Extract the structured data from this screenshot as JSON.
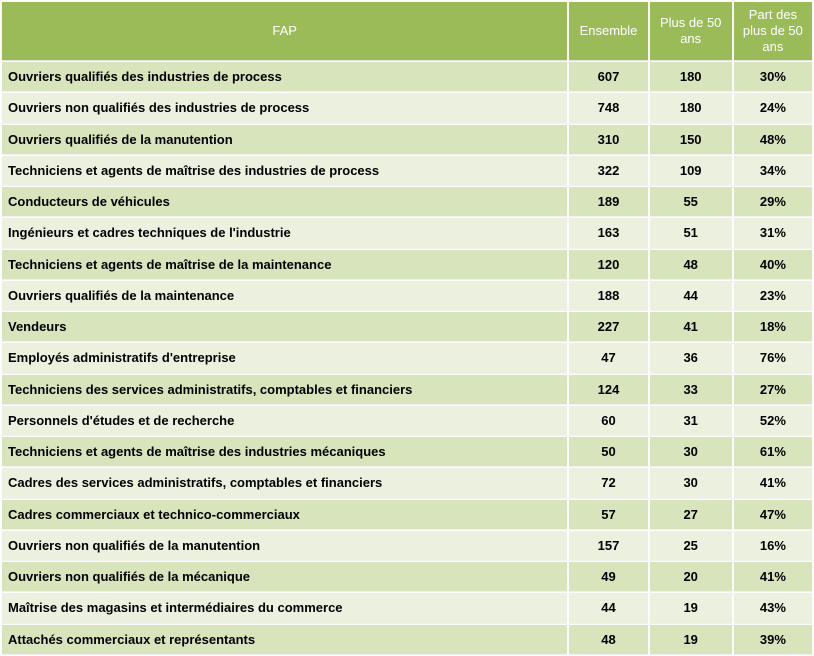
{
  "colors": {
    "header_bg": "#9bbb59",
    "header_text": "#ffffff",
    "row_odd_bg": "#d7e4bc",
    "row_even_bg": "#ebf1de",
    "grid": "#ffffff",
    "body_text": "#000000"
  },
  "chart_data": {
    "type": "table",
    "title": "",
    "columns": [
      "FAP",
      "Ensemble",
      "Plus de 50 ans",
      "Part des plus de 50 ans"
    ],
    "rows": [
      [
        "Ouvriers qualifiés des industries de process",
        "607",
        "180",
        "30%"
      ],
      [
        "Ouvriers non qualifiés des industries de process",
        "748",
        "180",
        "24%"
      ],
      [
        "Ouvriers qualifiés de la manutention",
        "310",
        "150",
        "48%"
      ],
      [
        "Techniciens et agents de maîtrise des industries de process",
        "322",
        "109",
        "34%"
      ],
      [
        "Conducteurs de véhicules",
        "189",
        "55",
        "29%"
      ],
      [
        "Ingénieurs et cadres techniques de l'industrie",
        "163",
        "51",
        "31%"
      ],
      [
        "Techniciens et agents de maîtrise de la maintenance",
        "120",
        "48",
        "40%"
      ],
      [
        "Ouvriers qualifiés de la maintenance",
        "188",
        "44",
        "23%"
      ],
      [
        "Vendeurs",
        "227",
        "41",
        "18%"
      ],
      [
        "Employés administratifs d'entreprise",
        "47",
        "36",
        "76%"
      ],
      [
        "Techniciens des services administratifs, comptables et financiers",
        "124",
        "33",
        "27%"
      ],
      [
        "Personnels d'études et de recherche",
        "60",
        "31",
        "52%"
      ],
      [
        "Techniciens et agents de maîtrise des industries mécaniques",
        "50",
        "30",
        "61%"
      ],
      [
        "Cadres des services administratifs, comptables et financiers",
        "72",
        "30",
        "41%"
      ],
      [
        "Cadres commerciaux et technico-commerciaux",
        "57",
        "27",
        "47%"
      ],
      [
        "Ouvriers non qualifiés de la manutention",
        "157",
        "25",
        "16%"
      ],
      [
        "Ouvriers non qualifiés de la mécanique",
        "49",
        "20",
        "41%"
      ],
      [
        "Maîtrise des magasins et intermédiaires du commerce",
        "44",
        "19",
        "43%"
      ],
      [
        "Attachés commerciaux et représentants",
        "48",
        "19",
        "39%"
      ]
    ]
  }
}
